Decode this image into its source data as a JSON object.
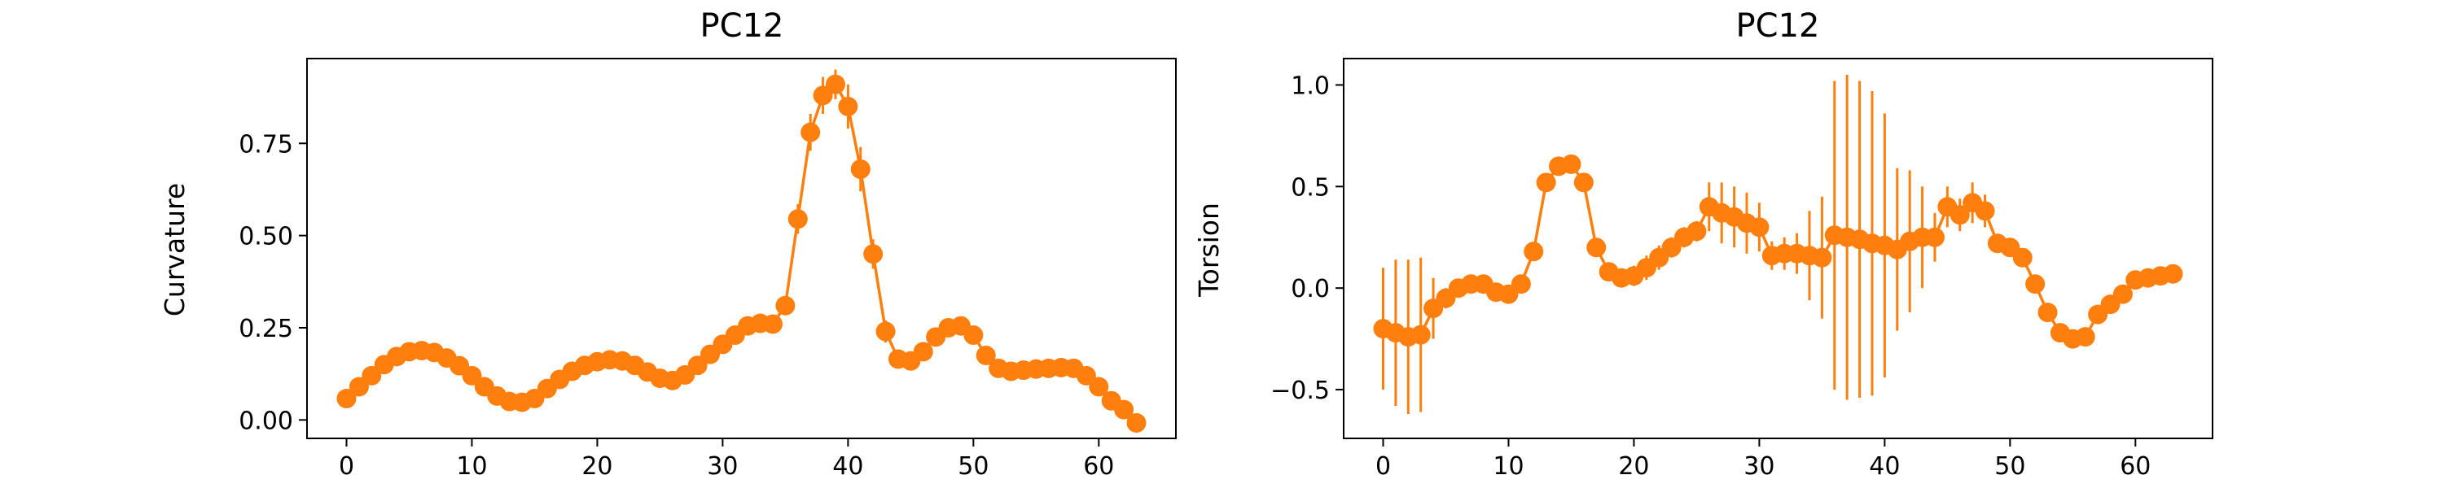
{
  "colors": {
    "series": "#ff7f0e",
    "axes": "#000000",
    "background": "#ffffff"
  },
  "chart_data": [
    {
      "type": "line",
      "title": "PC12",
      "xlabel": "",
      "ylabel": "Curvature",
      "xlim": [
        -3.15,
        66.15
      ],
      "ylim": [
        -0.05,
        0.98
      ],
      "xticks": [
        0,
        10,
        20,
        30,
        40,
        50,
        60
      ],
      "yticks": [
        0.0,
        0.25,
        0.5,
        0.75
      ],
      "ytick_labels": [
        "0.00",
        "0.25",
        "0.50",
        "0.75"
      ],
      "grid": false,
      "markers": true,
      "error_bars": true,
      "x": [
        0,
        1,
        2,
        3,
        4,
        5,
        6,
        7,
        8,
        9,
        10,
        11,
        12,
        13,
        14,
        15,
        16,
        17,
        18,
        19,
        20,
        21,
        22,
        23,
        24,
        25,
        26,
        27,
        28,
        29,
        30,
        31,
        32,
        33,
        34,
        35,
        36,
        37,
        38,
        39,
        40,
        41,
        42,
        43,
        44,
        45,
        46,
        47,
        48,
        49,
        50,
        51,
        52,
        53,
        54,
        55,
        56,
        57,
        58,
        59,
        60,
        61,
        62,
        63
      ],
      "values": [
        0.058,
        0.09,
        0.12,
        0.15,
        0.172,
        0.185,
        0.188,
        0.183,
        0.168,
        0.147,
        0.12,
        0.09,
        0.065,
        0.05,
        0.048,
        0.058,
        0.085,
        0.11,
        0.132,
        0.148,
        0.158,
        0.163,
        0.16,
        0.148,
        0.13,
        0.113,
        0.107,
        0.122,
        0.148,
        0.178,
        0.205,
        0.23,
        0.255,
        0.262,
        0.26,
        0.31,
        0.545,
        0.78,
        0.88,
        0.91,
        0.85,
        0.68,
        0.45,
        0.24,
        0.165,
        0.16,
        0.185,
        0.225,
        0.25,
        0.255,
        0.23,
        0.175,
        0.14,
        0.132,
        0.135,
        0.138,
        0.14,
        0.142,
        0.14,
        0.12,
        0.09,
        0.052,
        0.028,
        -0.008
      ],
      "errors": [
        0.012,
        0.012,
        0.012,
        0.012,
        0.012,
        0.012,
        0.012,
        0.012,
        0.012,
        0.012,
        0.012,
        0.012,
        0.012,
        0.012,
        0.012,
        0.012,
        0.012,
        0.012,
        0.012,
        0.012,
        0.012,
        0.012,
        0.012,
        0.012,
        0.012,
        0.012,
        0.012,
        0.012,
        0.015,
        0.015,
        0.015,
        0.015,
        0.015,
        0.015,
        0.015,
        0.02,
        0.04,
        0.05,
        0.05,
        0.04,
        0.06,
        0.06,
        0.04,
        0.03,
        0.02,
        0.015,
        0.015,
        0.015,
        0.02,
        0.02,
        0.02,
        0.015,
        0.012,
        0.012,
        0.012,
        0.012,
        0.012,
        0.012,
        0.012,
        0.012,
        0.012,
        0.012,
        0.012,
        0.012
      ]
    },
    {
      "type": "line",
      "title": "PC12",
      "xlabel": "",
      "ylabel": "Torsion",
      "xlim": [
        -3.15,
        66.15
      ],
      "ylim": [
        -0.74,
        1.13
      ],
      "xticks": [
        0,
        10,
        20,
        30,
        40,
        50,
        60
      ],
      "yticks": [
        -0.5,
        0.0,
        0.5,
        1.0
      ],
      "ytick_labels": [
        "−0.5",
        "0.0",
        "0.5",
        "1.0"
      ],
      "grid": false,
      "markers": true,
      "error_bars": true,
      "x": [
        0,
        1,
        2,
        3,
        4,
        5,
        6,
        7,
        8,
        9,
        10,
        11,
        12,
        13,
        14,
        15,
        16,
        17,
        18,
        19,
        20,
        21,
        22,
        23,
        24,
        25,
        26,
        27,
        28,
        29,
        30,
        31,
        32,
        33,
        34,
        35,
        36,
        37,
        38,
        39,
        40,
        41,
        42,
        43,
        44,
        45,
        46,
        47,
        48,
        49,
        50,
        51,
        52,
        53,
        54,
        55,
        56,
        57,
        58,
        59,
        60,
        61,
        62,
        63
      ],
      "values": [
        -0.2,
        -0.22,
        -0.24,
        -0.23,
        -0.1,
        -0.05,
        0.0,
        0.02,
        0.02,
        -0.02,
        -0.03,
        0.02,
        0.18,
        0.52,
        0.6,
        0.61,
        0.52,
        0.2,
        0.08,
        0.05,
        0.06,
        0.1,
        0.15,
        0.2,
        0.25,
        0.28,
        0.4,
        0.37,
        0.35,
        0.32,
        0.3,
        0.16,
        0.17,
        0.17,
        0.16,
        0.15,
        0.26,
        0.25,
        0.24,
        0.22,
        0.21,
        0.19,
        0.23,
        0.25,
        0.25,
        0.4,
        0.36,
        0.42,
        0.38,
        0.22,
        0.2,
        0.15,
        0.02,
        -0.12,
        -0.22,
        -0.25,
        -0.24,
        -0.13,
        -0.08,
        -0.03,
        0.04,
        0.05,
        0.06,
        0.07
      ],
      "errors": [
        0.3,
        0.36,
        0.38,
        0.38,
        0.15,
        0.05,
        0.03,
        0.02,
        0.02,
        0.02,
        0.02,
        0.03,
        0.04,
        0.04,
        0.03,
        0.03,
        0.04,
        0.04,
        0.04,
        0.03,
        0.05,
        0.06,
        0.06,
        0.05,
        0.05,
        0.05,
        0.12,
        0.15,
        0.15,
        0.15,
        0.12,
        0.07,
        0.08,
        0.1,
        0.22,
        0.3,
        0.76,
        0.8,
        0.78,
        0.75,
        0.65,
        0.4,
        0.35,
        0.25,
        0.12,
        0.1,
        0.08,
        0.1,
        0.08,
        0.04,
        0.04,
        0.04,
        0.04,
        0.04,
        0.04,
        0.04,
        0.04,
        0.03,
        0.03,
        0.03,
        0.03,
        0.03,
        0.03,
        0.03
      ]
    }
  ]
}
